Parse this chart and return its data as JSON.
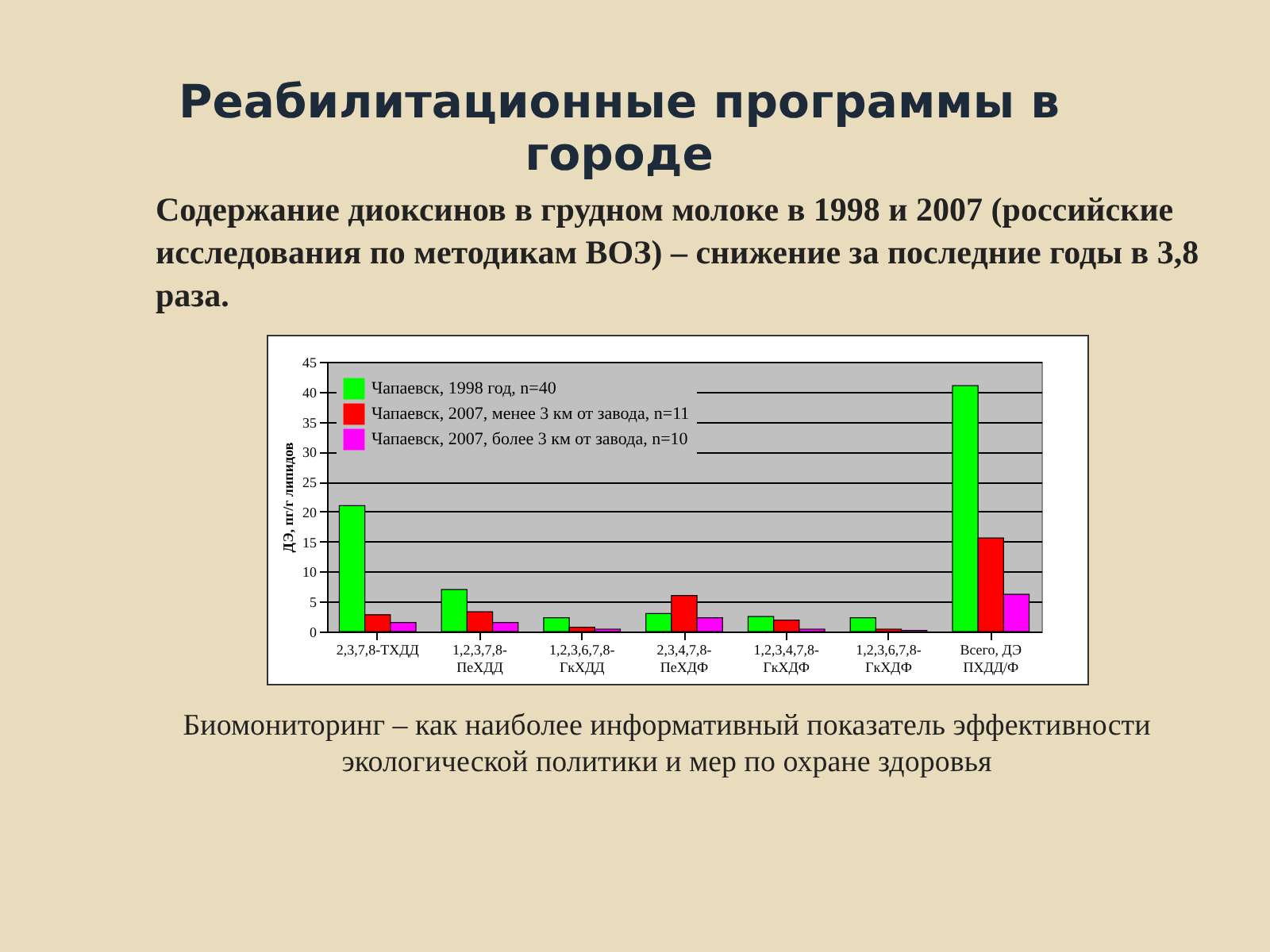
{
  "chart_data": {
    "type": "bar",
    "title": "Реабилитационные программы в городе",
    "subtitle": "Содержание диоксинов в грудном молоке в 1998 и 2007 (российские исследования по методикам ВОЗ) – снижение  за последние годы в 3,8  раза.",
    "ylabel": "ДЭ, пг/г липидов",
    "categories": [
      "2,3,7,8-ТХДД",
      "1,2,3,7,8-ПеХДД",
      "1,2,3,6,7,8-ГкХДД",
      "2,3,4,7,8-ПеХДФ",
      "1,2,3,4,7,8-ГкХДФ",
      "1,2,3,6,7,8-ГкХДФ",
      "Всего, ДЭ ПХДД/Ф"
    ],
    "series": [
      {
        "name": "Чапаевск, 1998 год, n=40",
        "color": "#00ff00",
        "values": [
          21,
          7,
          2.3,
          3,
          2.5,
          2.3,
          41
        ]
      },
      {
        "name": "Чапаевск, 2007, менее 3 км от завода, n=11",
        "color": "#ff0000",
        "values": [
          2.8,
          3.3,
          0.7,
          6,
          1.9,
          0.4,
          15.6
        ]
      },
      {
        "name": "Чапаевск, 2007, более 3 км от завода, n=10",
        "color": "#ff00ff",
        "values": [
          1.5,
          1.5,
          0.4,
          2.3,
          0.4,
          0.2,
          6.2
        ]
      }
    ],
    "ylim": [
      0,
      45
    ],
    "yticks": [
      0,
      5,
      10,
      15,
      20,
      25,
      30,
      35,
      40,
      45
    ],
    "grid": "y",
    "legend": "top left",
    "annotations": [
      "Биомониторинг – как  наиболее информативный показатель эффективности экологической политики  и мер по охране здоровья"
    ]
  }
}
